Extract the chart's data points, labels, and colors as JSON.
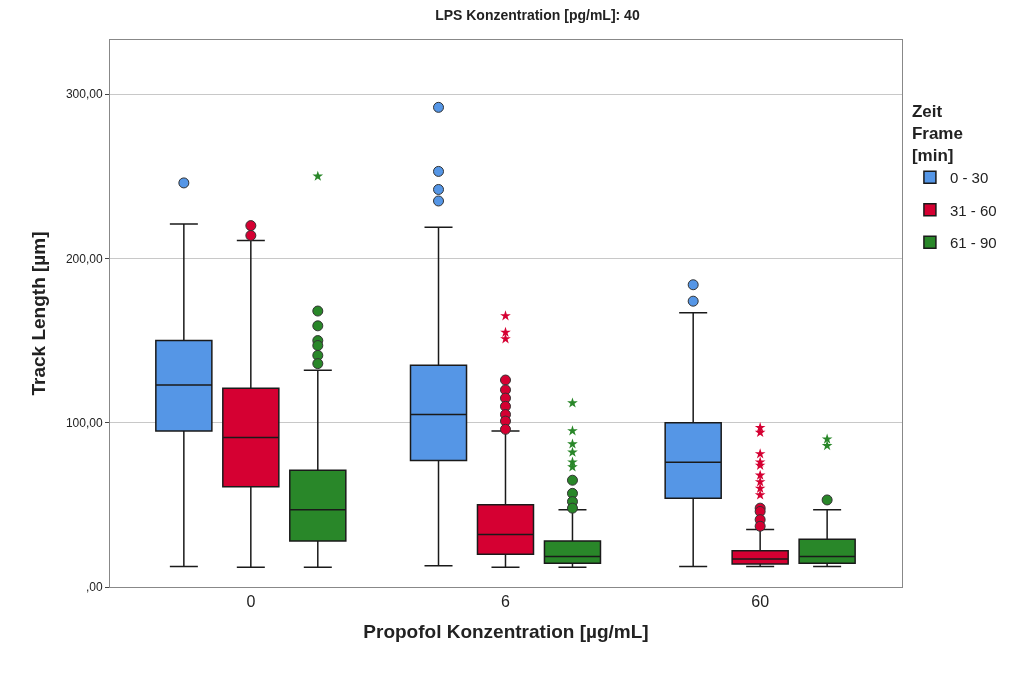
{
  "chart_data": {
    "type": "box",
    "title": "LPS Konzentration [pg/mL]: 40",
    "xlabel": "Propofol Konzentration [µg/mL]",
    "ylabel": "Track Length [µm]",
    "legend_title": "Zeit\nFrame\n[min]",
    "categories": [
      "0",
      "6",
      "60"
    ],
    "ylim": [
      0,
      333
    ],
    "yticks": [
      {
        "value": 0,
        "label": ",00"
      },
      {
        "value": 100,
        "label": "100,00"
      },
      {
        "value": 200,
        "label": "200,00"
      },
      {
        "value": 300,
        "label": "300,00"
      }
    ],
    "grid": "y",
    "legend": "right",
    "series": [
      {
        "name": "0 - 30",
        "color": "#5596e6",
        "marker": "circle",
        "boxes": [
          {
            "low": 12.5,
            "q1": 95,
            "median": 123,
            "q3": 150,
            "high": 221,
            "outliers": [
              246
            ]
          },
          {
            "low": 13,
            "q1": 77,
            "median": 105,
            "q3": 135,
            "high": 219,
            "outliers": [
              292,
              253,
              242,
              235
            ]
          },
          {
            "low": 12.5,
            "q1": 54,
            "median": 76,
            "q3": 100,
            "high": 167,
            "outliers": [
              184,
              174
            ]
          }
        ]
      },
      {
        "name": "31 - 60",
        "color": "#d50032",
        "marker": "circle",
        "boxes": [
          {
            "low": 12,
            "q1": 61,
            "median": 91,
            "q3": 121,
            "high": 211,
            "outliers": [
              220,
              214
            ]
          },
          {
            "low": 12,
            "q1": 20,
            "median": 32,
            "q3": 50,
            "high": 95,
            "outliers": [
              126,
              120,
              115,
              110,
              105,
              101,
              96
            ]
          },
          {
            "low": 12.5,
            "q1": 14,
            "median": 17,
            "q3": 22,
            "high": 35,
            "outliers": [
              48,
              46,
              41,
              37
            ]
          }
        ]
      },
      {
        "name": "61 - 90",
        "color": "#298729",
        "marker": "circle",
        "boxes": [
          {
            "low": 12,
            "q1": 28,
            "median": 47,
            "q3": 71,
            "high": 132,
            "outliers": [
              168,
              159,
              150,
              147,
              141,
              136
            ]
          },
          {
            "low": 12,
            "q1": 14.5,
            "median": 18.5,
            "q3": 28,
            "high": 47,
            "outliers": [
              65,
              57,
              52,
              48
            ]
          },
          {
            "low": 12.5,
            "q1": 14.5,
            "median": 18.5,
            "q3": 29,
            "high": 47,
            "outliers": [
              53
            ]
          }
        ]
      },
      {
        "type": "scatter",
        "color": "#d50032",
        "marker": "star",
        "x": [
          "6",
          "6",
          "6",
          "60",
          "60",
          "60",
          "60",
          "60",
          "60",
          "60",
          "60",
          "60"
        ],
        "values": [
          165,
          155,
          151,
          97,
          94,
          81,
          76,
          74,
          68,
          64,
          60,
          56
        ]
      },
      {
        "type": "scatter",
        "color": "#298729",
        "marker": "star",
        "x": [
          "0",
          "6",
          "6",
          "6",
          "6",
          "6",
          "6",
          "60",
          "60"
        ],
        "values": [
          250,
          112,
          95,
          87,
          82,
          76,
          73,
          90,
          86
        ]
      }
    ]
  }
}
